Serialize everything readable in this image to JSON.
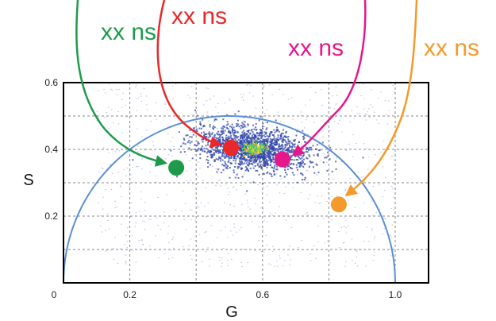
{
  "chart_data": {
    "type": "scatter",
    "title": "",
    "xlabel": "G",
    "ylabel": "S",
    "xlim": [
      0,
      1.1
    ],
    "ylim": [
      0,
      0.6
    ],
    "grid": true,
    "x_ticks": [
      {
        "value": 0,
        "label": "0"
      },
      {
        "value": 0.2,
        "label": "0.2"
      },
      {
        "value": 0.6,
        "label": "0.6"
      },
      {
        "value": 1.0,
        "label": "1.0"
      }
    ],
    "y_ticks": [
      {
        "value": 0.2,
        "label": "0.2"
      },
      {
        "value": 0.4,
        "label": "0.4"
      },
      {
        "value": 0.6,
        "label": "0.6"
      }
    ],
    "grid_x": [
      0.2,
      0.4,
      0.6,
      0.8,
      1.0
    ],
    "grid_y": [
      0.1,
      0.2,
      0.3,
      0.4,
      0.5
    ],
    "universal_circle": {
      "center_g": 0.5,
      "radius": 0.5,
      "color": "#5b8fd6"
    },
    "cloud": {
      "center_g": 0.57,
      "center_s": 0.405,
      "spread_g": 0.085,
      "spread_s": 0.032
    },
    "markers": [
      {
        "label": "xx ns",
        "g": 0.34,
        "s": 0.345,
        "color": "#1e9b4a"
      },
      {
        "label": "xx ns",
        "g": 0.505,
        "s": 0.405,
        "color": "#e8282a"
      },
      {
        "label": "xx ns",
        "g": 0.66,
        "s": 0.37,
        "color": "#e6178b"
      },
      {
        "label": "xx ns",
        "g": 0.83,
        "s": 0.235,
        "color": "#f39a2b"
      }
    ]
  }
}
